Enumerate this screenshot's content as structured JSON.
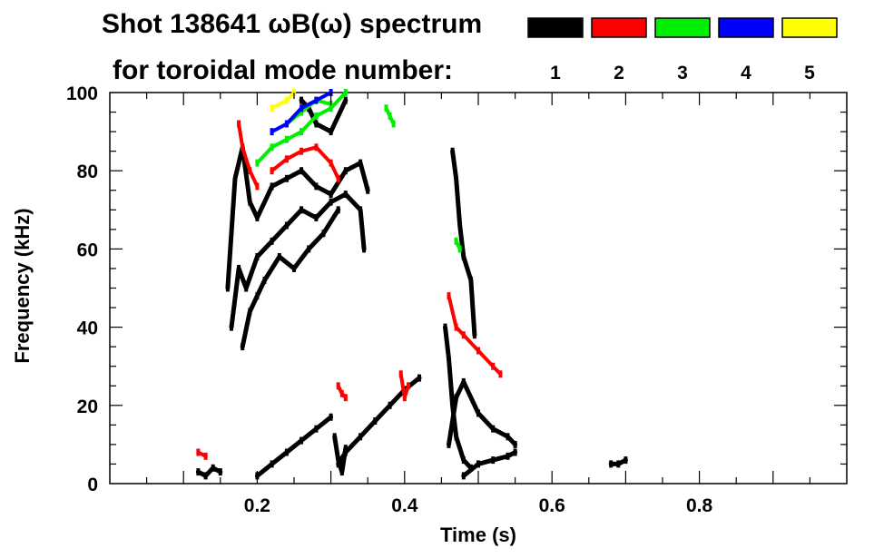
{
  "chart_data": {
    "type": "heatmap",
    "title_line1": "Shot 138641 ωB(ω) spectrum",
    "title_line2": "for toroidal mode number:",
    "xlabel": "Time (s)",
    "ylabel": "Frequency (kHz)",
    "xlim": [
      0.0,
      1.0
    ],
    "ylim": [
      0,
      100
    ],
    "xticks": [
      0.2,
      0.4,
      0.6,
      0.8
    ],
    "xtick_labels": [
      "0.2",
      "0.4",
      "0.6",
      "0.8"
    ],
    "yticks": [
      0,
      20,
      40,
      60,
      80,
      100
    ],
    "ytick_labels": [
      "0",
      "20",
      "40",
      "60",
      "80",
      "100"
    ],
    "grid": false,
    "legend_placement": "top-right",
    "legend": [
      {
        "label": "1",
        "color": "#000000"
      },
      {
        "label": "2",
        "color": "#ff0000"
      },
      {
        "label": "3",
        "color": "#00ee00"
      },
      {
        "label": "4",
        "color": "#0000ff"
      },
      {
        "label": "5",
        "color": "#ffff00"
      }
    ],
    "series": [
      {
        "mode": 1,
        "color": "#000000",
        "segments": [
          [
            [
              0.16,
              50
            ],
            [
              0.17,
              78
            ],
            [
              0.18,
              86
            ],
            [
              0.19,
              72
            ],
            [
              0.2,
              68
            ],
            [
              0.22,
              76
            ],
            [
              0.24,
              78
            ],
            [
              0.26,
              80
            ],
            [
              0.28,
              76
            ],
            [
              0.3,
              74
            ],
            [
              0.32,
              80
            ],
            [
              0.34,
              82
            ],
            [
              0.35,
              75
            ]
          ],
          [
            [
              0.165,
              40
            ],
            [
              0.175,
              55
            ],
            [
              0.185,
              50
            ],
            [
              0.2,
              58
            ],
            [
              0.22,
              62
            ],
            [
              0.24,
              66
            ],
            [
              0.26,
              70
            ],
            [
              0.28,
              68
            ],
            [
              0.3,
              72
            ],
            [
              0.32,
              74
            ],
            [
              0.34,
              70
            ],
            [
              0.345,
              60
            ]
          ],
          [
            [
              0.18,
              35
            ],
            [
              0.19,
              44
            ],
            [
              0.2,
              48
            ],
            [
              0.21,
              52
            ],
            [
              0.23,
              58
            ],
            [
              0.25,
              55
            ],
            [
              0.27,
              60
            ],
            [
              0.29,
              64
            ],
            [
              0.31,
              70
            ]
          ],
          [
            [
              0.26,
              98
            ],
            [
              0.27,
              96
            ],
            [
              0.28,
              92
            ],
            [
              0.3,
              90
            ],
            [
              0.32,
              98
            ]
          ],
          [
            [
              0.12,
              3
            ],
            [
              0.13,
              2
            ],
            [
              0.14,
              4
            ],
            [
              0.15,
              3
            ]
          ],
          [
            [
              0.2,
              2
            ],
            [
              0.22,
              5
            ],
            [
              0.24,
              8
            ],
            [
              0.26,
              11
            ],
            [
              0.28,
              14
            ],
            [
              0.3,
              17
            ]
          ],
          [
            [
              0.31,
              5
            ],
            [
              0.32,
              8
            ],
            [
              0.34,
              12
            ],
            [
              0.36,
              16
            ],
            [
              0.38,
              20
            ],
            [
              0.4,
              24
            ],
            [
              0.42,
              27
            ]
          ],
          [
            [
              0.305,
              12
            ],
            [
              0.31,
              6
            ],
            [
              0.315,
              3
            ],
            [
              0.32,
              9
            ]
          ],
          [
            [
              0.455,
              40
            ],
            [
              0.46,
              32
            ],
            [
              0.465,
              20
            ],
            [
              0.47,
              12
            ],
            [
              0.48,
              6
            ],
            [
              0.49,
              4
            ]
          ],
          [
            [
              0.46,
              10
            ],
            [
              0.47,
              22
            ],
            [
              0.48,
              26
            ],
            [
              0.5,
              18
            ],
            [
              0.52,
              14
            ],
            [
              0.54,
              12
            ],
            [
              0.55,
              10
            ]
          ],
          [
            [
              0.465,
              85
            ],
            [
              0.47,
              78
            ],
            [
              0.475,
              66
            ],
            [
              0.48,
              58
            ],
            [
              0.49,
              52
            ],
            [
              0.495,
              38
            ]
          ],
          [
            [
              0.48,
              2
            ],
            [
              0.5,
              5
            ],
            [
              0.52,
              6
            ],
            [
              0.54,
              7
            ],
            [
              0.55,
              8
            ]
          ],
          [
            [
              0.68,
              5
            ],
            [
              0.69,
              5
            ],
            [
              0.7,
              6
            ]
          ]
        ]
      },
      {
        "mode": 2,
        "color": "#ff0000",
        "segments": [
          [
            [
              0.175,
              92
            ],
            [
              0.18,
              86
            ],
            [
              0.19,
              80
            ],
            [
              0.2,
              76
            ]
          ],
          [
            [
              0.22,
              80
            ],
            [
              0.24,
              83
            ],
            [
              0.26,
              85
            ],
            [
              0.28,
              86
            ],
            [
              0.3,
              82
            ],
            [
              0.31,
              78
            ]
          ],
          [
            [
              0.31,
              25
            ],
            [
              0.315,
              23
            ],
            [
              0.32,
              22
            ]
          ],
          [
            [
              0.395,
              28
            ],
            [
              0.4,
              22
            ],
            [
              0.405,
              25
            ]
          ],
          [
            [
              0.46,
              48
            ],
            [
              0.47,
              40
            ],
            [
              0.48,
              38
            ],
            [
              0.5,
              34
            ],
            [
              0.52,
              30
            ],
            [
              0.53,
              28
            ]
          ],
          [
            [
              0.12,
              8
            ],
            [
              0.13,
              7
            ]
          ]
        ]
      },
      {
        "mode": 3,
        "color": "#00ee00",
        "segments": [
          [
            [
              0.2,
              82
            ],
            [
              0.22,
              86
            ],
            [
              0.24,
              88
            ],
            [
              0.26,
              90
            ],
            [
              0.28,
              94
            ],
            [
              0.3,
              96
            ],
            [
              0.32,
              100
            ]
          ],
          [
            [
              0.24,
              92
            ],
            [
              0.26,
              95
            ],
            [
              0.28,
              98
            ],
            [
              0.3,
              97
            ]
          ],
          [
            [
              0.375,
              96
            ],
            [
              0.38,
              94
            ],
            [
              0.385,
              92
            ]
          ],
          [
            [
              0.47,
              62
            ],
            [
              0.475,
              60
            ]
          ]
        ]
      },
      {
        "mode": 4,
        "color": "#0000ff",
        "segments": [
          [
            [
              0.22,
              90
            ],
            [
              0.24,
              92
            ],
            [
              0.26,
              96
            ],
            [
              0.28,
              98
            ],
            [
              0.3,
              100
            ]
          ]
        ]
      },
      {
        "mode": 5,
        "color": "#ffff00",
        "segments": [
          [
            [
              0.22,
              96
            ],
            [
              0.24,
              98
            ],
            [
              0.25,
              100
            ]
          ]
        ]
      }
    ]
  }
}
